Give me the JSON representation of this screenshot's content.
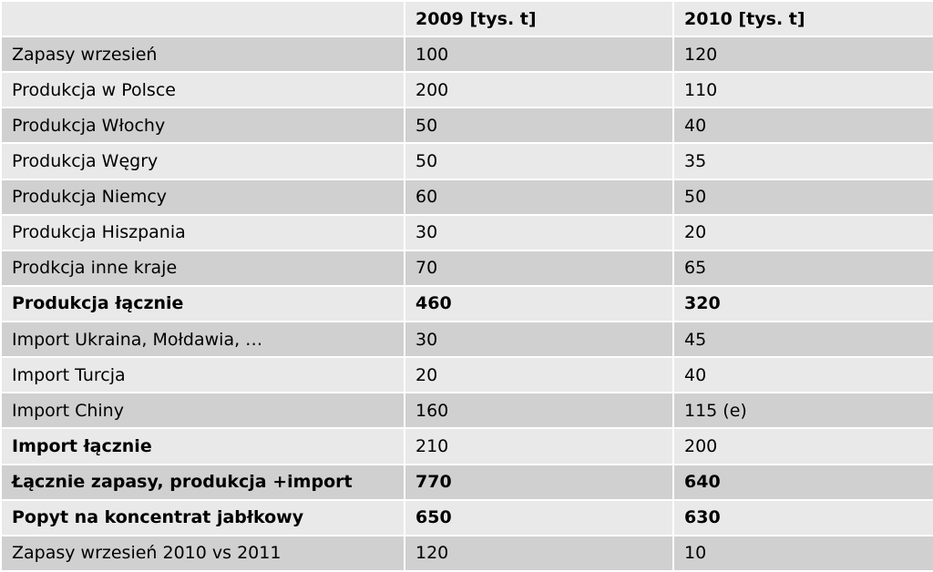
{
  "table": {
    "header": [
      "2009 [tys. t]",
      "2010 [tys. t]"
    ],
    "rows": [
      [
        "Zapasy wrzesień",
        100,
        120
      ],
      [
        "Produkcja w Polsce",
        200,
        110
      ],
      [
        "Produkcja Włochy",
        50,
        40
      ],
      [
        "Produkcja Węgry",
        50,
        35
      ],
      [
        "Produkcja Niemcy",
        60,
        50
      ],
      [
        "Produkcja Hiszpania",
        30,
        20
      ],
      [
        "Prodkcja inne kraje",
        70,
        65
      ],
      [
        "Produkcja łącznie",
        460,
        320
      ],
      [
        "Import Ukraina, Mołdawia, …",
        30,
        45
      ],
      [
        "Import Turcja",
        20,
        40
      ],
      [
        "Import Chiny",
        160,
        "115 (e)"
      ],
      [
        "Import łącznie",
        210,
        200
      ],
      [
        "Łącznie zapasy, produkcja +import",
        770,
        640
      ],
      [
        "Popyt na koncentrat jabłkowy",
        650,
        630
      ],
      [
        "Zapasy wrzesień 2010 vs 2011",
        120,
        10
      ]
    ]
  }
}
